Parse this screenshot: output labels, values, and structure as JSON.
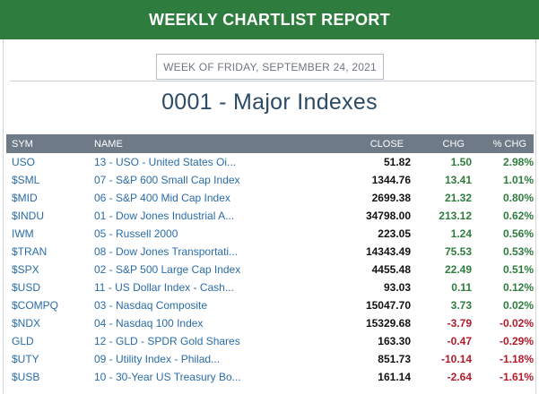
{
  "header": {
    "title": "WEEKLY CHARTLIST REPORT"
  },
  "week_label": "WEEK OF FRIDAY, SEPTEMBER 24, 2021",
  "page_title": "0001 - Major Indexes",
  "table": {
    "columns": [
      "SYM",
      "NAME",
      "CLOSE",
      "CHG",
      "% CHG"
    ],
    "rows": [
      {
        "sym": "USO",
        "name": "13 - USO - United States Oi...",
        "close": "51.82",
        "chg": "1.50",
        "pct": "2.98%",
        "dir": "pos"
      },
      {
        "sym": "$SML",
        "name": "07 - S&P 600 Small Cap Index",
        "close": "1344.76",
        "chg": "13.41",
        "pct": "1.01%",
        "dir": "pos"
      },
      {
        "sym": "$MID",
        "name": "06 - S&P 400 Mid Cap Index",
        "close": "2699.38",
        "chg": "21.32",
        "pct": "0.80%",
        "dir": "pos"
      },
      {
        "sym": "$INDU",
        "name": "01 - Dow Jones Industrial A...",
        "close": "34798.00",
        "chg": "213.12",
        "pct": "0.62%",
        "dir": "pos"
      },
      {
        "sym": "IWM",
        "name": "05 - Russell 2000",
        "close": "223.05",
        "chg": "1.24",
        "pct": "0.56%",
        "dir": "pos"
      },
      {
        "sym": "$TRAN",
        "name": "08 - Dow Jones Transportati...",
        "close": "14343.49",
        "chg": "75.53",
        "pct": "0.53%",
        "dir": "pos"
      },
      {
        "sym": "$SPX",
        "name": "02 - S&P 500 Large Cap Index",
        "close": "4455.48",
        "chg": "22.49",
        "pct": "0.51%",
        "dir": "pos"
      },
      {
        "sym": "$USD",
        "name": "11 - US Dollar Index - Cash...",
        "close": "93.03",
        "chg": "0.11",
        "pct": "0.12%",
        "dir": "pos"
      },
      {
        "sym": "$COMPQ",
        "name": "03 - Nasdaq Composite",
        "close": "15047.70",
        "chg": "3.73",
        "pct": "0.02%",
        "dir": "pos"
      },
      {
        "sym": "$NDX",
        "name": "04 - Nasdaq 100 Index",
        "close": "15329.68",
        "chg": "-3.79",
        "pct": "-0.02%",
        "dir": "neg"
      },
      {
        "sym": "GLD",
        "name": "12 - GLD - SPDR Gold Shares",
        "close": "163.30",
        "chg": "-0.47",
        "pct": "-0.29%",
        "dir": "neg"
      },
      {
        "sym": "$UTY",
        "name": "09 - Utility Index - Philad...",
        "close": "851.73",
        "chg": "-10.14",
        "pct": "-1.18%",
        "dir": "neg"
      },
      {
        "sym": "$USB",
        "name": "10 - 30-Year US Treasury Bo...",
        "close": "161.14",
        "chg": "-2.64",
        "pct": "-1.61%",
        "dir": "neg"
      }
    ]
  },
  "colors": {
    "header_bg": "#2e7d3e",
    "table_header_bg": "#6e7a87",
    "link": "#2a6ca8",
    "positive": "#2e7d3e",
    "negative": "#b31b2c",
    "title": "#2c4b66"
  }
}
